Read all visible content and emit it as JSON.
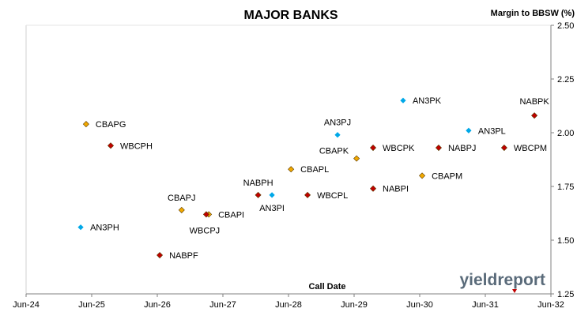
{
  "chart_data": {
    "type": "scatter",
    "title": "MAJOR BANKS",
    "xlabel": "Call Date",
    "ylabel": "Margin to BBSW (%)",
    "xlim": [
      "2024-06-01",
      "2032-06-01"
    ],
    "ylim": [
      1.25,
      2.5
    ],
    "x_ticks": [
      "Jun-24",
      "Jun-25",
      "Jun-26",
      "Jun-27",
      "Jun-28",
      "Jun-29",
      "Jun-30",
      "Jun-31",
      "Jun-32"
    ],
    "y_ticks": [
      "1.25",
      "1.50",
      "1.75",
      "2.00",
      "2.25",
      "2.50"
    ],
    "y_tick_values": [
      1.25,
      1.5,
      1.75,
      2.0,
      2.25,
      2.5
    ],
    "grid": false,
    "legend": "none",
    "series": [
      {
        "color": "#f2a900",
        "points": [
          {
            "label": "CBAPG",
            "x": "2025-05-01",
            "y": 2.04
          },
          {
            "label": "CBAPJ",
            "x": "2026-10-15",
            "y": 1.64
          },
          {
            "label": "CBAPI",
            "x": "2027-03-15",
            "y": 1.62
          },
          {
            "label": "CBAPL",
            "x": "2028-06-15",
            "y": 1.83
          },
          {
            "label": "CBAPK",
            "x": "2029-06-15",
            "y": 1.88
          },
          {
            "label": "CBAPM",
            "x": "2030-06-15",
            "y": 1.8
          }
        ]
      },
      {
        "color": "#c00000",
        "points": [
          {
            "label": "WBCPH",
            "x": "2025-09-15",
            "y": 1.94
          },
          {
            "label": "NABPF",
            "x": "2026-06-15",
            "y": 1.43
          },
          {
            "label": "WBCPJ",
            "x": "2027-03-01",
            "y": 1.62
          },
          {
            "label": "NABPH",
            "x": "2027-12-15",
            "y": 1.71
          },
          {
            "label": "WBCPL",
            "x": "2028-09-15",
            "y": 1.71
          },
          {
            "label": "WBCPK",
            "x": "2029-09-15",
            "y": 1.93
          },
          {
            "label": "NABPI",
            "x": "2029-09-15",
            "y": 1.74
          },
          {
            "label": "NABPJ",
            "x": "2030-09-15",
            "y": 1.93
          },
          {
            "label": "WBCPM",
            "x": "2031-09-15",
            "y": 1.93
          },
          {
            "label": "NABPK",
            "x": "2032-03-01",
            "y": 2.08
          }
        ]
      },
      {
        "color": "#00a8e8",
        "points": [
          {
            "label": "AN3PH",
            "x": "2025-04-01",
            "y": 1.56
          },
          {
            "label": "AN3PI",
            "x": "2028-03-01",
            "y": 1.71
          },
          {
            "label": "AN3PJ",
            "x": "2029-03-01",
            "y": 1.99
          },
          {
            "label": "AN3PK",
            "x": "2030-03-01",
            "y": 2.15
          },
          {
            "label": "AN3PL",
            "x": "2031-03-01",
            "y": 2.01
          }
        ]
      }
    ]
  },
  "logo": {
    "text": "yieldreport"
  }
}
